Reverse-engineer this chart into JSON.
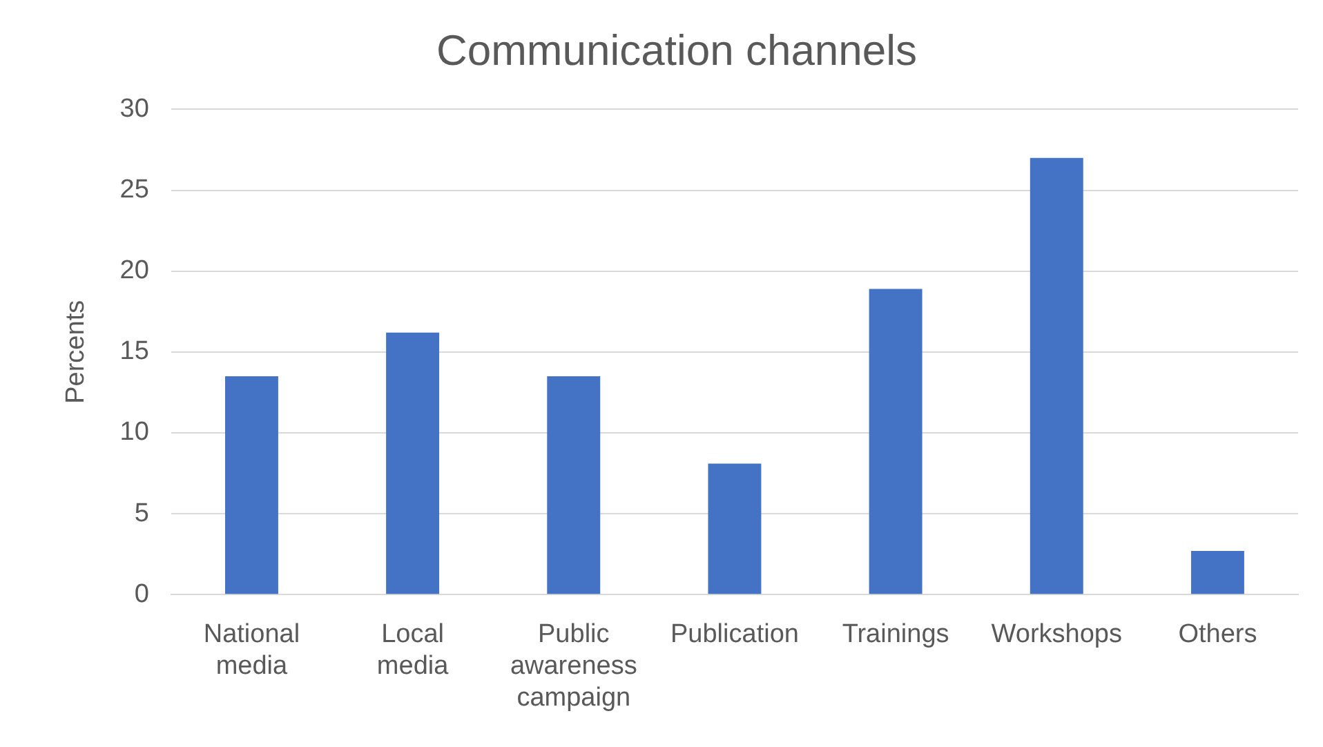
{
  "chart_data": {
    "type": "bar",
    "title": "Communication channels",
    "ylabel": "Percents",
    "categories": [
      "National media",
      "Local media",
      "Public awareness campaign",
      "Publication",
      "Trainings",
      "Workshops",
      "Others"
    ],
    "values": [
      13.5,
      16.2,
      13.5,
      8.1,
      18.9,
      27.0,
      2.7
    ],
    "color": "#4472c4",
    "ylim": [
      0,
      30
    ],
    "yticks": [
      0,
      5,
      10,
      15,
      20,
      25,
      30
    ],
    "grid": "y",
    "legend": false
  }
}
